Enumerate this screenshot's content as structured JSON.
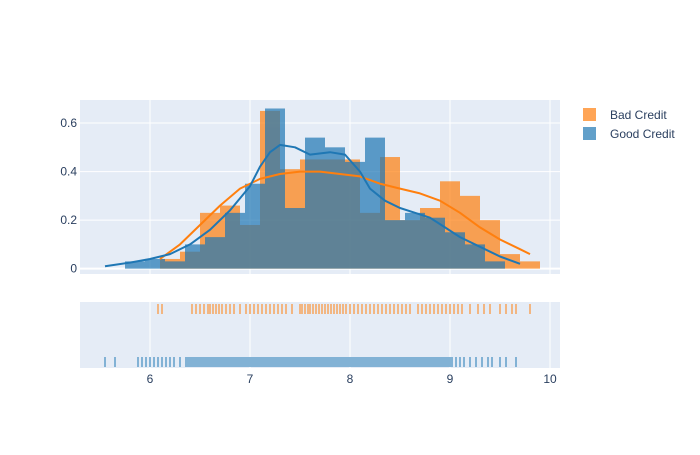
{
  "chart_data": {
    "type": "histogram",
    "xlim": [
      5.3,
      10.1
    ],
    "ylim": [
      -0.022,
      0.695
    ],
    "x_ticks": [
      6,
      7,
      8,
      9,
      10
    ],
    "y_ticks": [
      0,
      0.2,
      0.4,
      0.6
    ],
    "y_tick_labels": [
      "0",
      "0.2",
      "0.4",
      "0.6"
    ],
    "grid": true,
    "legend_position": "top-right",
    "series": [
      {
        "name": "Bad Credit",
        "color": "#ff7f0e",
        "bins": [
          {
            "x0": 6.1,
            "x1": 6.3,
            "y": 0.04
          },
          {
            "x0": 6.3,
            "x1": 6.5,
            "y": 0.07
          },
          {
            "x0": 6.5,
            "x1": 6.7,
            "y": 0.23
          },
          {
            "x0": 6.7,
            "x1": 6.9,
            "y": 0.26
          },
          {
            "x0": 6.9,
            "x1": 7.1,
            "y": 0.18
          },
          {
            "x0": 7.1,
            "x1": 7.3,
            "y": 0.65
          },
          {
            "x0": 7.3,
            "x1": 7.5,
            "y": 0.41
          },
          {
            "x0": 7.5,
            "x1": 7.7,
            "y": 0.45
          },
          {
            "x0": 7.7,
            "x1": 7.9,
            "y": 0.45
          },
          {
            "x0": 7.9,
            "x1": 8.1,
            "y": 0.45
          },
          {
            "x0": 8.1,
            "x1": 8.3,
            "y": 0.23
          },
          {
            "x0": 8.3,
            "x1": 8.5,
            "y": 0.46
          },
          {
            "x0": 8.5,
            "x1": 8.7,
            "y": 0.2
          },
          {
            "x0": 8.7,
            "x1": 8.9,
            "y": 0.25
          },
          {
            "x0": 8.9,
            "x1": 9.1,
            "y": 0.36
          },
          {
            "x0": 9.1,
            "x1": 9.3,
            "y": 0.3
          },
          {
            "x0": 9.3,
            "x1": 9.5,
            "y": 0.2
          },
          {
            "x0": 9.5,
            "x1": 9.7,
            "y": 0.06
          },
          {
            "x0": 9.7,
            "x1": 9.9,
            "y": 0.03
          }
        ],
        "kde": {
          "x": [
            6.1,
            6.3,
            6.5,
            6.7,
            6.9,
            7.1,
            7.3,
            7.5,
            7.7,
            7.9,
            8.1,
            8.3,
            8.5,
            8.7,
            8.9,
            9.1,
            9.3,
            9.5,
            9.7,
            9.8
          ],
          "y": [
            0.04,
            0.1,
            0.18,
            0.26,
            0.33,
            0.37,
            0.39,
            0.4,
            0.4,
            0.39,
            0.38,
            0.35,
            0.33,
            0.31,
            0.28,
            0.23,
            0.17,
            0.12,
            0.08,
            0.06
          ]
        },
        "rug": [
          6.08,
          6.12,
          6.42,
          6.46,
          6.5,
          6.54,
          6.58,
          6.6,
          6.63,
          6.66,
          6.69,
          6.72,
          6.76,
          6.8,
          6.84,
          6.9,
          6.96,
          7.0,
          7.04,
          7.08,
          7.12,
          7.16,
          7.2,
          7.24,
          7.28,
          7.32,
          7.36,
          7.42,
          7.5,
          7.52,
          7.55,
          7.58,
          7.6,
          7.63,
          7.66,
          7.69,
          7.72,
          7.75,
          7.78,
          7.81,
          7.84,
          7.87,
          7.9,
          7.93,
          7.96,
          8.0,
          8.04,
          8.08,
          8.12,
          8.16,
          8.2,
          8.24,
          8.28,
          8.32,
          8.36,
          8.4,
          8.44,
          8.48,
          8.52,
          8.56,
          8.6,
          8.68,
          8.72,
          8.76,
          8.8,
          8.84,
          8.88,
          8.92,
          8.96,
          9.0,
          9.04,
          9.08,
          9.12,
          9.2,
          9.28,
          9.34,
          9.4,
          9.5,
          9.56,
          9.62,
          9.66,
          9.8
        ]
      },
      {
        "name": "Good Credit",
        "color": "#1f77b4",
        "bins": [
          {
            "x0": 5.75,
            "x1": 5.95,
            "y": 0.03
          },
          {
            "x0": 5.95,
            "x1": 6.15,
            "y": 0.04
          },
          {
            "x0": 6.15,
            "x1": 6.35,
            "y": 0.03
          },
          {
            "x0": 6.35,
            "x1": 6.55,
            "y": 0.1
          },
          {
            "x0": 6.55,
            "x1": 6.75,
            "y": 0.13
          },
          {
            "x0": 6.75,
            "x1": 6.95,
            "y": 0.23
          },
          {
            "x0": 6.95,
            "x1": 7.15,
            "y": 0.35
          },
          {
            "x0": 7.15,
            "x1": 7.35,
            "y": 0.66
          },
          {
            "x0": 7.35,
            "x1": 7.55,
            "y": 0.25
          },
          {
            "x0": 7.55,
            "x1": 7.75,
            "y": 0.54
          },
          {
            "x0": 7.75,
            "x1": 7.95,
            "y": 0.5
          },
          {
            "x0": 7.95,
            "x1": 8.15,
            "y": 0.44
          },
          {
            "x0": 8.15,
            "x1": 8.35,
            "y": 0.54
          },
          {
            "x0": 8.35,
            "x1": 8.55,
            "y": 0.2
          },
          {
            "x0": 8.55,
            "x1": 8.75,
            "y": 0.23
          },
          {
            "x0": 8.75,
            "x1": 8.95,
            "y": 0.21
          },
          {
            "x0": 8.95,
            "x1": 9.15,
            "y": 0.15
          },
          {
            "x0": 9.15,
            "x1": 9.35,
            "y": 0.1
          },
          {
            "x0": 9.35,
            "x1": 9.55,
            "y": 0.03
          }
        ],
        "kde": {
          "x": [
            5.55,
            5.8,
            6.0,
            6.2,
            6.4,
            6.6,
            6.8,
            7.0,
            7.1,
            7.2,
            7.3,
            7.45,
            7.6,
            7.8,
            7.95,
            8.1,
            8.2,
            8.35,
            8.5,
            8.65,
            8.8,
            8.95,
            9.1,
            9.3,
            9.5,
            9.7
          ],
          "y": [
            0.01,
            0.025,
            0.04,
            0.06,
            0.1,
            0.16,
            0.24,
            0.34,
            0.42,
            0.48,
            0.51,
            0.5,
            0.47,
            0.48,
            0.47,
            0.4,
            0.33,
            0.28,
            0.25,
            0.23,
            0.21,
            0.17,
            0.13,
            0.09,
            0.05,
            0.02
          ]
        },
        "rug": [
          5.55,
          5.65,
          5.88,
          5.92,
          5.96,
          6.0,
          6.04,
          6.08,
          6.12,
          6.16,
          6.2,
          6.24,
          6.3,
          6.36,
          6.38,
          6.4,
          6.42,
          6.44,
          6.46,
          6.48,
          6.5,
          6.52,
          6.54,
          6.56,
          6.58,
          6.6,
          6.62,
          6.64,
          6.66,
          6.68,
          6.7,
          6.72,
          6.74,
          6.76,
          6.78,
          6.8,
          6.82,
          6.84,
          6.86,
          6.88,
          6.9,
          6.92,
          6.94,
          6.96,
          6.98,
          7.0,
          7.02,
          7.04,
          7.06,
          7.08,
          7.1,
          7.12,
          7.14,
          7.16,
          7.18,
          7.2,
          7.22,
          7.24,
          7.26,
          7.28,
          7.3,
          7.32,
          7.34,
          7.36,
          7.38,
          7.4,
          7.42,
          7.44,
          7.46,
          7.48,
          7.5,
          7.52,
          7.54,
          7.56,
          7.58,
          7.6,
          7.62,
          7.64,
          7.66,
          7.68,
          7.7,
          7.72,
          7.74,
          7.76,
          7.78,
          7.8,
          7.82,
          7.84,
          7.86,
          7.88,
          7.9,
          7.92,
          7.94,
          7.96,
          7.98,
          8.0,
          8.02,
          8.04,
          8.06,
          8.08,
          8.1,
          8.12,
          8.14,
          8.16,
          8.18,
          8.2,
          8.22,
          8.24,
          8.26,
          8.28,
          8.3,
          8.32,
          8.34,
          8.36,
          8.38,
          8.4,
          8.42,
          8.44,
          8.46,
          8.48,
          8.5,
          8.52,
          8.54,
          8.56,
          8.58,
          8.6,
          8.62,
          8.64,
          8.66,
          8.68,
          8.7,
          8.72,
          8.74,
          8.76,
          8.78,
          8.8,
          8.82,
          8.84,
          8.86,
          8.88,
          8.9,
          8.92,
          8.94,
          8.96,
          8.98,
          9.0,
          9.02,
          9.06,
          9.1,
          9.14,
          9.2,
          9.26,
          9.32,
          9.38,
          9.42,
          9.5,
          9.56,
          9.66
        ]
      }
    ]
  }
}
